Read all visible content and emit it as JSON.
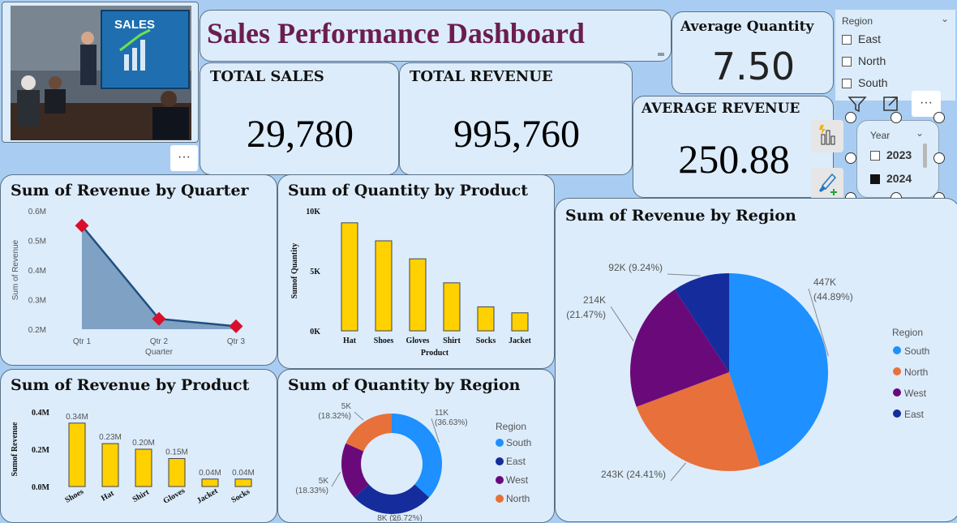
{
  "header": {
    "title": "Sales Performance Dashboard"
  },
  "image": {
    "caption": "SALES"
  },
  "kpis": {
    "total_sales_label": "TOTAL SALES",
    "total_sales_value": "29,780",
    "total_revenue_label": "TOTAL REVENUE",
    "total_revenue_value": "995,760",
    "avg_quantity_label": "Average Quantity",
    "avg_quantity_value": "7.50",
    "avg_revenue_label": "AVERAGE REVENUE",
    "avg_revenue_value": "250.88"
  },
  "slicers": {
    "region": {
      "title": "Region",
      "options": [
        "East",
        "North",
        "South"
      ]
    },
    "year": {
      "title": "Year",
      "options": [
        "2023",
        "2024"
      ],
      "checked": [
        false,
        true
      ]
    }
  },
  "more_label": "···",
  "colors": {
    "accent": "#ffd100",
    "title": "#6b1d4f",
    "south": "#1e90ff",
    "north": "#e8703a",
    "west": "#6a0a7a",
    "east": "#152c9c"
  },
  "icons": [
    "filter-icon",
    "focus-mode-icon",
    "more-options-icon",
    "build-visual-icon",
    "format-visual-icon"
  ],
  "chart_data": [
    {
      "type": "area",
      "title": "Sum of Revenue by Quarter",
      "xlabel": "Quarter",
      "ylabel": "Sum of Revenue",
      "categories": [
        "Qtr 1",
        "Qtr 2",
        "Qtr 3"
      ],
      "values": [
        0.55,
        0.235,
        0.21
      ],
      "ylim": [
        0.2,
        0.6
      ],
      "yticks": [
        "0.2M",
        "0.3M",
        "0.4M",
        "0.5M",
        "0.6M"
      ]
    },
    {
      "type": "bar",
      "title": "Sum of Quantity by Product",
      "xlabel": "Product",
      "ylabel": "Sumof Quantity",
      "categories": [
        "Hat",
        "Shoes",
        "Gloves",
        "Shirt",
        "Socks",
        "Jacket"
      ],
      "values": [
        9000,
        7500,
        6000,
        4000,
        2000,
        1500
      ],
      "ylim": [
        0,
        10000
      ],
      "yticks": [
        "0K",
        "5K",
        "10K"
      ]
    },
    {
      "type": "bar",
      "title": "Sum of Revenue by Product",
      "ylabel": "Sumof Revenue",
      "categories": [
        "Shoes",
        "Hat",
        "Shirt",
        "Gloves",
        "Jacket",
        "Socks"
      ],
      "values": [
        0.34,
        0.23,
        0.2,
        0.15,
        0.04,
        0.04
      ],
      "data_labels": [
        "0.34M",
        "0.23M",
        "0.20M",
        "0.15M",
        "0.04M",
        "0.04M"
      ],
      "ylim": [
        0,
        0.4
      ],
      "yticks": [
        "0.0M",
        "0.2M",
        "0.4M"
      ]
    },
    {
      "type": "pie",
      "title": "Sum of Quantity by Region",
      "donut": true,
      "legend_title": "Region",
      "slices": [
        {
          "name": "South",
          "percent": 36.63,
          "label": "11K\n(36.63%)"
        },
        {
          "name": "East",
          "percent": 26.72,
          "label": "8K (26.72%)"
        },
        {
          "name": "West",
          "percent": 18.33,
          "label": "5K\n(18.33%)"
        },
        {
          "name": "North",
          "percent": 18.32,
          "label": "5K\n(18.32%)"
        }
      ]
    },
    {
      "type": "pie",
      "title": "Sum of Revenue by Region",
      "legend_title": "Region",
      "legend_order": [
        "South",
        "North",
        "West",
        "East"
      ],
      "slices": [
        {
          "name": "South",
          "percent": 44.89,
          "label": "447K\n(44.89%)"
        },
        {
          "name": "North",
          "percent": 24.41,
          "label": "243K (24.41%)"
        },
        {
          "name": "West",
          "percent": 21.47,
          "label": "214K\n(21.47%)"
        },
        {
          "name": "East",
          "percent": 9.24,
          "label": "92K (9.24%)"
        }
      ]
    }
  ]
}
